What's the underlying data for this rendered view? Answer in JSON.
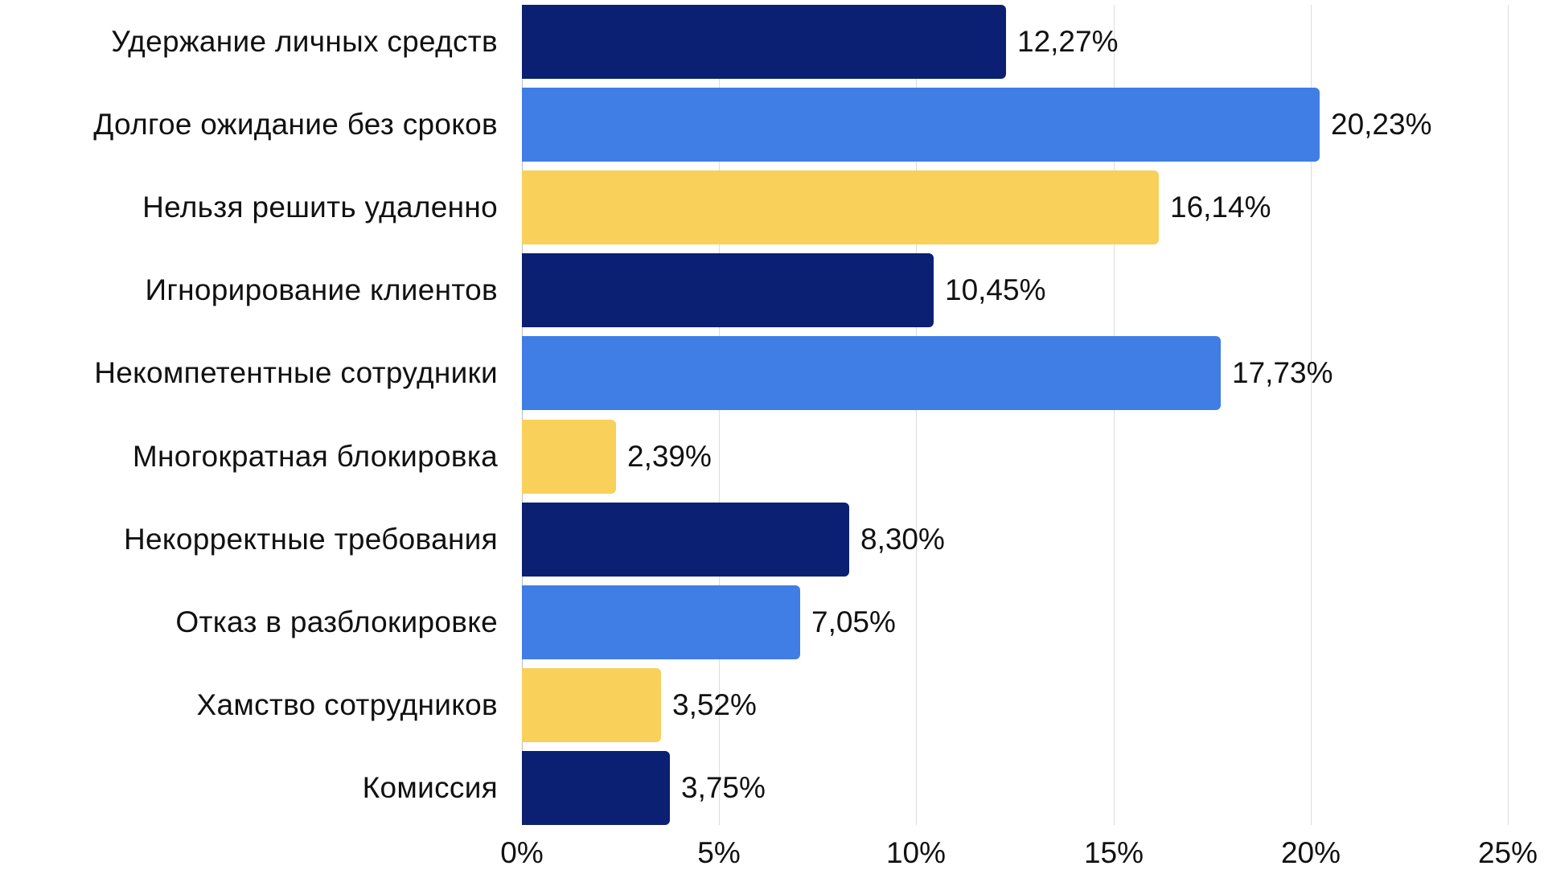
{
  "chart_data": {
    "type": "bar",
    "orientation": "horizontal",
    "title": "",
    "xlabel": "",
    "ylabel": "",
    "xlim": [
      0,
      25
    ],
    "grid": true,
    "legend": null,
    "categories": [
      "Удержание личных средств",
      "Долгое ожидание без сроков",
      "Нельзя решить удаленно",
      "Игнорирование клиентов",
      "Некомпетентные сотрудники",
      "Многократная блокировка",
      "Некорректные требования",
      "Отказ в разблокировке",
      "Хамство сотрудников",
      "Комиссия"
    ],
    "values": [
      12.27,
      20.23,
      16.14,
      10.45,
      17.73,
      2.39,
      8.3,
      7.05,
      3.52,
      3.75
    ],
    "value_labels": [
      "12,27%",
      "20,23%",
      "16,14%",
      "10,45%",
      "17,73%",
      "2,39%",
      "8,30%",
      "7,05%",
      "3,52%",
      "3,75%"
    ],
    "bar_colors": [
      "#0B1F73",
      "#407DE5",
      "#F8D05A",
      "#0B1F73",
      "#407DE5",
      "#F8D05A",
      "#0B1F73",
      "#407DE5",
      "#F8D05A",
      "#0B1F73"
    ],
    "x_ticks": [
      0,
      5,
      10,
      15,
      20,
      25
    ],
    "x_tick_labels": [
      "0%",
      "5%",
      "10%",
      "15%",
      "20%",
      "25%"
    ]
  },
  "colors": {
    "navy": "#0B1F73",
    "blue": "#407DE5",
    "yellow": "#F8D05A",
    "grid": "#DCDCDC",
    "text": "#111111"
  }
}
